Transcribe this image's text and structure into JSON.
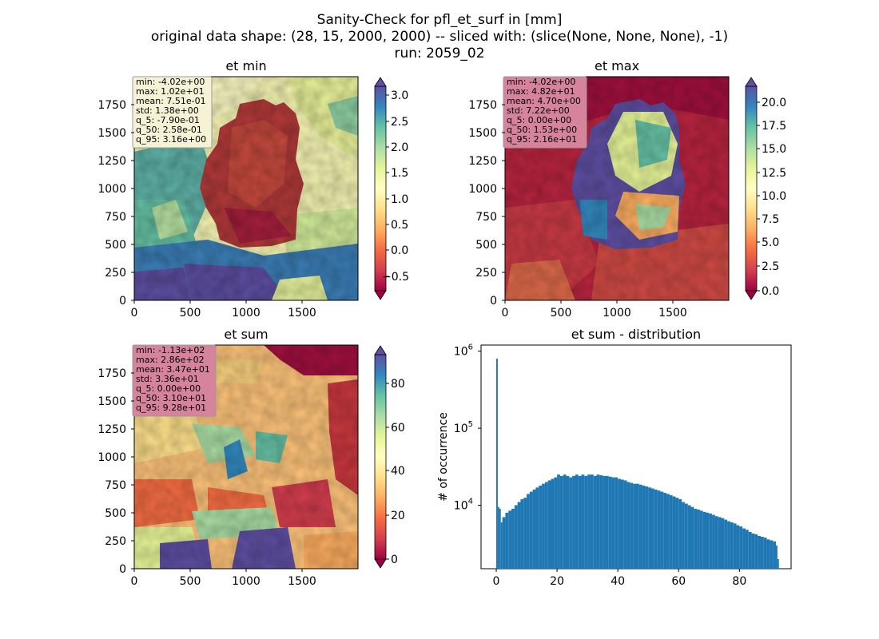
{
  "figure": {
    "suptitle_lines": [
      "Sanity-Check for pfl_et_surf in [mm]",
      "original data shape: (28, 15, 2000, 2000) -- sliced with: (slice(None, None, None), -1)",
      "run: 2059_02"
    ]
  },
  "colormap": "Spectral",
  "map_axis_ticks": [
    "0",
    "250",
    "500",
    "750",
    "1000",
    "1250",
    "1500",
    "1750"
  ],
  "map_x_ticks": [
    "0",
    "500",
    "1000",
    "1500"
  ],
  "chart_data": [
    {
      "type": "heatmap",
      "title": "et min",
      "xlim": [
        0,
        2000
      ],
      "ylim": [
        0,
        2000
      ],
      "colorbar": {
        "range": [
          -0.8,
          3.2
        ],
        "ticks": [
          "3.0",
          "2.5",
          "2.0",
          "1.5",
          "1.0",
          "0.5",
          "0.0",
          "−0.5"
        ]
      },
      "stats": [
        "min: -4.02e+00",
        "max: 1.02e+01",
        "mean: 7.51e-01",
        "std: 1.38e+00",
        "q_5: -7.90e-01",
        "q_50: 2.58e-01",
        "q_95: 3.16e+00"
      ],
      "stats_box_color": "#f5f2d6"
    },
    {
      "type": "heatmap",
      "title": "et max",
      "xlim": [
        0,
        2000
      ],
      "ylim": [
        0,
        2000
      ],
      "colorbar": {
        "range": [
          0,
          22
        ],
        "ticks": [
          "20.0",
          "17.5",
          "15.0",
          "12.5",
          "10.0",
          "7.5",
          "5.0",
          "2.5",
          "0.0"
        ]
      },
      "stats": [
        "min: -4.02e+00",
        "max: 4.82e+01",
        "mean: 4.70e+00",
        "std: 7.22e+00",
        "q_5: 0.00e+00",
        "q_50: 1.53e+00",
        "q_95: 2.16e+01"
      ],
      "stats_box_color": "#d6849c"
    },
    {
      "type": "heatmap",
      "title": "et sum",
      "xlim": [
        0,
        2000
      ],
      "ylim": [
        0,
        2000
      ],
      "colorbar": {
        "range": [
          -3,
          95
        ],
        "ticks": [
          "80",
          "60",
          "40",
          "20",
          "0"
        ]
      },
      "stats": [
        "min: -1.13e+02",
        "max: 2.86e+02",
        "mean: 3.47e+01",
        "std: 3.36e+01",
        "q_5: 0.00e+00",
        "q_50: 3.10e+01",
        "q_95: 9.28e+01"
      ],
      "stats_box_color": "#d6849c"
    },
    {
      "type": "bar",
      "title": "et sum - distribution",
      "xlabel": "",
      "ylabel": "# of occurrence",
      "yscale": "log",
      "xlim": [
        -5,
        97
      ],
      "ylim": [
        1500,
        1200000
      ],
      "xticks": [
        "0",
        "20",
        "40",
        "60",
        "80"
      ],
      "yticks": [
        {
          "base": "10",
          "exp": "6"
        },
        {
          "base": "10",
          "exp": "5"
        },
        {
          "base": "10",
          "exp": "4"
        }
      ],
      "bin_width": 0.5,
      "bins_x": [
        0,
        0.5,
        1,
        1.5,
        2,
        3,
        4,
        5,
        6,
        7,
        8,
        9,
        10,
        11,
        12,
        13,
        14,
        15,
        16,
        17,
        18,
        19,
        20,
        21,
        22,
        23,
        24,
        25,
        26,
        27,
        28,
        29,
        30,
        31,
        32,
        33,
        34,
        35,
        36,
        37,
        38,
        39,
        40,
        41,
        42,
        43,
        44,
        45,
        46,
        47,
        48,
        49,
        50,
        51,
        52,
        53,
        54,
        55,
        56,
        57,
        58,
        59,
        60,
        61,
        62,
        63,
        64,
        65,
        66,
        67,
        68,
        69,
        70,
        71,
        72,
        73,
        74,
        75,
        76,
        77,
        78,
        79,
        80,
        81,
        82,
        83,
        84,
        85,
        86,
        87,
        88,
        89,
        90,
        91,
        92,
        92.5
      ],
      "counts": [
        800000,
        9500,
        9000,
        6000,
        7000,
        8000,
        8500,
        9000,
        10000,
        11000,
        12000,
        12500,
        14000,
        15000,
        16000,
        17000,
        18000,
        19000,
        20000,
        21000,
        22000,
        23000,
        25000,
        24000,
        25000,
        24000,
        23000,
        24000,
        25000,
        24000,
        25000,
        24000,
        25000,
        25000,
        24000,
        25000,
        24500,
        24000,
        24000,
        23500,
        23000,
        23000,
        22000,
        21500,
        21000,
        20000,
        19500,
        19000,
        19000,
        18500,
        18000,
        17500,
        17000,
        16500,
        16000,
        15500,
        15000,
        14500,
        14000,
        13500,
        13000,
        12500,
        12000,
        11000,
        10500,
        10000,
        9500,
        9000,
        8800,
        8500,
        8200,
        8000,
        7800,
        7500,
        7200,
        7000,
        6800,
        6500,
        6200,
        6000,
        5800,
        5500,
        5300,
        5000,
        4800,
        4500,
        4300,
        4200,
        4000,
        3900,
        3800,
        3600,
        3500,
        3400,
        3000,
        2000
      ],
      "bar_color": "#1f77b4"
    }
  ]
}
